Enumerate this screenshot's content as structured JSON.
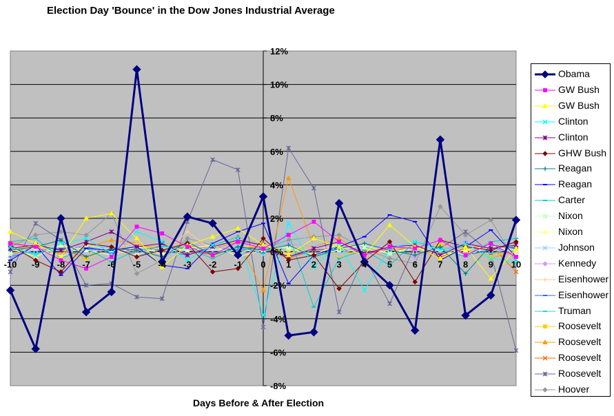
{
  "chart_data": {
    "type": "line",
    "title": "Election Day 'Bounce' in the Dow Jones Industrial Average",
    "xlabel": "Days Before & After Election",
    "ylabel": "",
    "x": [
      -10,
      -9,
      -8,
      -7,
      -6,
      -5,
      -4,
      -3,
      -2,
      -1,
      0,
      1,
      2,
      3,
      4,
      5,
      6,
      7,
      8,
      9,
      10
    ],
    "ylim": [
      -8,
      12
    ],
    "y_ticks": [
      -8,
      -6,
      -4,
      -2,
      0,
      2,
      4,
      6,
      8,
      10,
      12
    ],
    "y_tick_labels": [
      "-8%",
      "-6%",
      "-4%",
      "-2%",
      "0%",
      "2%",
      "4%",
      "6%",
      "8%",
      "10%",
      "12%"
    ],
    "x_tick_labels": [
      "-10",
      "-9",
      "-8",
      "-7",
      "-6",
      "-5",
      "-4",
      "-3",
      "-2",
      "-1",
      "0",
      "1",
      "2",
      "3",
      "4",
      "5",
      "6",
      "7",
      "8",
      "9",
      "10"
    ],
    "grid": true,
    "legend_position": "right",
    "series": [
      {
        "name": "Obama",
        "color": "#000080",
        "marker": "diamond",
        "values": [
          -2.3,
          -5.8,
          2.0,
          -3.6,
          -2.4,
          10.9,
          -0.6,
          2.1,
          1.7,
          -0.2,
          3.3,
          -5.0,
          -4.8,
          2.9,
          -0.6,
          -2.0,
          -4.7,
          6.7,
          -3.8,
          -2.6,
          1.9
        ]
      },
      {
        "name": "GW Bush",
        "color": "#FF00FF",
        "marker": "square",
        "values": [
          0.5,
          0.3,
          -0.5,
          -1.0,
          -0.3,
          1.5,
          1.1,
          0.3,
          -0.2,
          0.6,
          0.2,
          1.0,
          1.8,
          0.6,
          -0.2,
          0.3,
          0.2,
          0.7,
          -0.2,
          0.5,
          -0.3
        ]
      },
      {
        "name": "GW Bush",
        "color": "#FFFF00",
        "marker": "triangle",
        "values": [
          1.2,
          0.5,
          -0.3,
          2.0,
          2.3,
          0.8,
          -0.9,
          0.4,
          0.9,
          1.4,
          0.4,
          -0.2,
          0.8,
          0.3,
          -0.2,
          1.6,
          0.3,
          -0.4,
          0.3,
          -1.6,
          0.2
        ]
      },
      {
        "name": "Clinton",
        "color": "#00FFFF",
        "marker": "x",
        "values": [
          0.3,
          -0.2,
          0.5,
          0.8,
          -0.1,
          1.2,
          0.6,
          -0.5,
          0.4,
          0.8,
          -3.8,
          1.7,
          -0.9,
          0.5,
          -2.3,
          0.2,
          0.6,
          0.1,
          0.5,
          -0.4,
          -0.6
        ]
      },
      {
        "name": "Clinton",
        "color": "#800080",
        "marker": "star",
        "values": [
          0.2,
          0.4,
          0.1,
          0.6,
          1.2,
          0.3,
          0.5,
          -0.2,
          0.3,
          0.7,
          0.4,
          -0.3,
          0.2,
          0.6,
          -0.1,
          0.3,
          0.4,
          -0.2,
          0.5,
          0.2,
          0.4
        ]
      },
      {
        "name": "GHW Bush",
        "color": "#800000",
        "marker": "diamond",
        "values": [
          0.4,
          -0.5,
          -1.2,
          0.5,
          0.3,
          -0.3,
          0.1,
          0.5,
          -1.2,
          -1.0,
          0.8,
          -0.5,
          -0.2,
          -2.2,
          -0.6,
          0.6,
          -1.8,
          0.7,
          0.3,
          0.1,
          0.6
        ]
      },
      {
        "name": "Reagan",
        "color": "#008080",
        "marker": "plus",
        "values": [
          0.1,
          0.3,
          0.7,
          -0.3,
          0.2,
          0.1,
          -0.3,
          0.6,
          -0.2,
          0.3,
          0.1,
          0.4,
          -0.3,
          0.2,
          0.5,
          0.1,
          -0.2,
          0.3,
          -1.3,
          0.4,
          0.2
        ]
      },
      {
        "name": "Reagan",
        "color": "#0000FF",
        "marker": "dash",
        "values": [
          -0.5,
          0.4,
          -1.4,
          0.2,
          0.1,
          0.3,
          -0.8,
          -1.0,
          0.5,
          1.2,
          1.7,
          -1.9,
          -0.2,
          0.3,
          0.9,
          2.2,
          1.8,
          -0.5,
          0.3,
          1.3,
          -0.3
        ]
      },
      {
        "name": "Carter",
        "color": "#00CCCC",
        "marker": "dash",
        "values": [
          0.6,
          0.8,
          -0.4,
          0.2,
          -0.6,
          0.1,
          0.3,
          0.2,
          -0.4,
          0.3,
          -0.1,
          1.1,
          -3.3,
          -0.4,
          0.1,
          -0.8,
          0.6,
          0.2,
          -0.3,
          0.6,
          0.8
        ]
      },
      {
        "name": "Nixon",
        "color": "#CCFFCC",
        "marker": "square",
        "values": [
          -0.1,
          0.2,
          -0.3,
          0.4,
          0.1,
          -0.2,
          0.3,
          0.1,
          0.2,
          -0.1,
          0.3,
          0.2,
          -0.2,
          0.1,
          0.4,
          -0.1,
          0.2,
          0.1,
          -0.2,
          0.3,
          0.1
        ]
      },
      {
        "name": "Nixon",
        "color": "#FFFF99",
        "marker": "triangle",
        "values": [
          0.2,
          -0.3,
          0.4,
          0.1,
          -0.2,
          0.3,
          -0.1,
          0.2,
          0.4,
          -0.3,
          0.1,
          0.3,
          -0.2,
          0.5,
          0.2,
          -0.1,
          0.3,
          -0.2,
          0.1,
          0.4,
          -0.1
        ]
      },
      {
        "name": "Johnson",
        "color": "#99CCFF",
        "marker": "x",
        "values": [
          -0.2,
          0.1,
          0.3,
          -0.1,
          0.4,
          0.2,
          -0.3,
          0.1,
          0.2,
          0.3,
          -0.2,
          1.6,
          0.4,
          -0.1,
          0.2,
          0.5,
          0.1,
          -0.2,
          0.3,
          0.1,
          0.2
        ]
      },
      {
        "name": "Kennedy",
        "color": "#CC99FF",
        "marker": "diamond",
        "values": [
          0.1,
          0.3,
          -0.2,
          0.5,
          0.2,
          -0.1,
          0.3,
          0.4,
          0.1,
          -0.2,
          0.2,
          0.5,
          0.3,
          -0.1,
          0.4,
          0.2,
          -0.3,
          0.1,
          0.6,
          0.2,
          -0.1
        ]
      },
      {
        "name": "Eisenhower",
        "color": "#FFCC99",
        "marker": "plus",
        "values": [
          0.3,
          0.2,
          0.4,
          -0.1,
          0.2,
          0.5,
          -0.2,
          1.2,
          0.1,
          0.3,
          0.4,
          -0.1,
          0.2,
          0.3,
          -0.2,
          0.1,
          0.4,
          0.2,
          -0.1,
          0.3,
          0.2
        ]
      },
      {
        "name": "Eisenhower",
        "color": "#3366FF",
        "marker": "dash",
        "values": [
          -0.3,
          0.1,
          0.2,
          0.3,
          -0.1,
          0.2,
          0.1,
          -0.2,
          0.3,
          0.1,
          0.2,
          -0.3,
          0.1,
          0.2,
          -0.1,
          0.3,
          0.2,
          0.1,
          -0.2,
          0.1,
          0.3
        ]
      },
      {
        "name": "Truman",
        "color": "#33CCCC",
        "marker": "dash",
        "values": [
          0.2,
          -0.1,
          0.1,
          0.2,
          0.3,
          -0.2,
          0.1,
          0.3,
          -0.1,
          0.2,
          0.1,
          0.2,
          -0.3,
          0.1,
          0.3,
          -0.2,
          0.2,
          0.1,
          0.3,
          -0.1,
          0.2
        ]
      },
      {
        "name": "Roosevelt",
        "color": "#FFCC00",
        "marker": "square",
        "values": [
          0.1,
          0.4,
          -0.2,
          -0.4,
          0.3,
          0.2,
          0.4,
          0.5,
          -0.3,
          0.2,
          0.4,
          0.1,
          0.3,
          -0.2,
          0.1,
          0.3,
          0.2,
          0.4,
          0.1,
          -0.3,
          0.2
        ]
      },
      {
        "name": "Roosevelt",
        "color": "#FF9900",
        "marker": "triangle",
        "values": [
          0.6,
          0.2,
          -0.1,
          0.3,
          0.7,
          0.5,
          0.1,
          0.3,
          0.2,
          0.6,
          -2.3,
          4.4,
          0.3,
          0.8,
          -0.2,
          0.1,
          0.3,
          -0.2,
          0.5,
          -0.4,
          0.1
        ]
      },
      {
        "name": "Roosevelt",
        "color": "#FF6600",
        "marker": "x",
        "values": [
          -0.2,
          0.3,
          0.1,
          -0.3,
          0.2,
          -0.1,
          0.4,
          0.1,
          -0.2,
          0.3,
          0.2,
          -0.4,
          0.1,
          0.3,
          -0.2,
          0.2,
          0.1,
          -0.3,
          0.2,
          0.4,
          -1.2
        ]
      },
      {
        "name": "Roosevelt",
        "color": "#666699",
        "marker": "star",
        "values": [
          -1.2,
          1.7,
          0.7,
          -2.0,
          -1.9,
          -2.7,
          -2.8,
          1.8,
          5.5,
          4.9,
          -4.5,
          6.2,
          3.8,
          -3.6,
          -0.3,
          -3.1,
          0.4,
          0.2,
          1.2,
          -0.1,
          -5.9
        ]
      },
      {
        "name": "Hoover",
        "color": "#969696",
        "marker": "diamond",
        "values": [
          0.3,
          1.0,
          1.2,
          1.0,
          2.3,
          -1.3,
          -0.5,
          0.8,
          0.4,
          0.9,
          0.2,
          0.7,
          0.9,
          1.0,
          0.2,
          -0.4,
          -0.7,
          2.7,
          1.0,
          1.9,
          -0.6
        ]
      }
    ]
  }
}
